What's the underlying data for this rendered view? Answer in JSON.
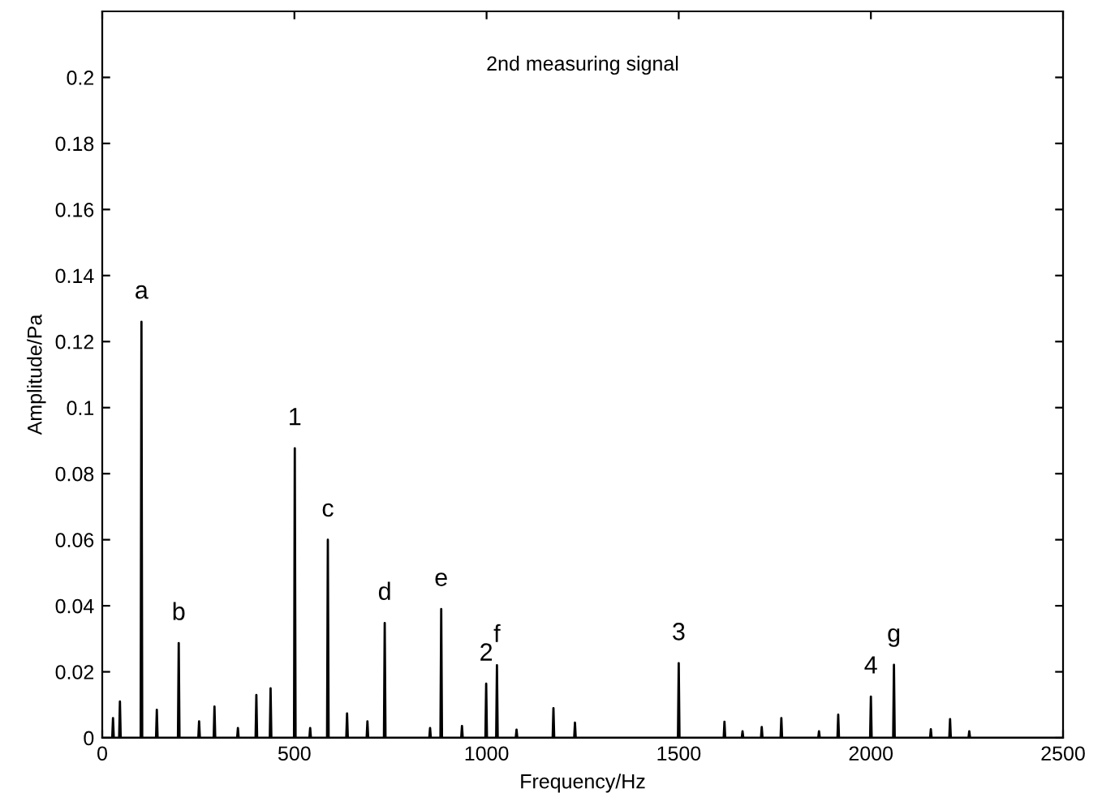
{
  "chart_data": {
    "type": "line",
    "title": "2nd measuring signal",
    "xlabel": "Frequency/Hz",
    "ylabel": "Amplitude/Pa",
    "x": [
      0,
      26,
      28,
      30,
      44,
      46,
      48,
      100,
      102,
      104,
      140,
      142,
      144,
      197,
      199,
      201,
      250,
      252,
      254,
      290,
      292,
      294,
      351,
      353,
      355,
      399,
      401,
      403,
      436,
      438,
      440,
      499,
      501,
      503,
      539,
      541,
      543,
      585,
      587,
      589,
      635,
      637,
      639,
      688,
      690,
      692,
      733,
      735,
      737,
      851,
      853,
      855,
      880,
      882,
      884,
      934,
      936,
      938,
      997,
      999,
      1001,
      1025,
      1027,
      1029,
      1076,
      1078,
      1080,
      1172,
      1174,
      1176,
      1228,
      1230,
      1232,
      1498,
      1500,
      1502,
      1617,
      1619,
      1621,
      1664,
      1666,
      1668,
      1714,
      1716,
      1718,
      1765,
      1767,
      1769,
      1863,
      1865,
      1867,
      1913,
      1915,
      1917,
      1998,
      2000,
      2002,
      2058,
      2060,
      2062,
      2154,
      2156,
      2158,
      2204,
      2206,
      2208,
      2254,
      2256,
      2258,
      2500
    ],
    "series": [
      {
        "color": "#000000",
        "values": [
          0,
          0,
          0.006,
          0,
          0,
          0.011,
          0,
          0,
          0.126,
          0,
          0,
          0.0085,
          0,
          0,
          0.0287,
          0,
          0,
          0.005,
          0,
          0,
          0.0095,
          0,
          0,
          0.003,
          0,
          0,
          0.013,
          0,
          0,
          0.015,
          0,
          0,
          0.0877,
          0,
          0,
          0.003,
          0,
          0,
          0.06,
          0,
          0,
          0.0074,
          0,
          0,
          0.005,
          0,
          0,
          0.0348,
          0,
          0,
          0.003,
          0,
          0,
          0.039,
          0,
          0,
          0.0036,
          0,
          0,
          0.0164,
          0,
          0,
          0.022,
          0,
          0,
          0.0025,
          0,
          0,
          0.009,
          0,
          0,
          0.0046,
          0,
          0,
          0.0226,
          0,
          0,
          0.0049,
          0,
          0,
          0.002,
          0,
          0,
          0.0033,
          0,
          0,
          0.006,
          0,
          0,
          0.002,
          0,
          0,
          0.007,
          0,
          0,
          0.0125,
          0,
          0,
          0.0221,
          0,
          0,
          0.0026,
          0,
          0,
          0.0057,
          0,
          0,
          0.002,
          0,
          0
        ]
      }
    ],
    "xlim": [
      0,
      2500
    ],
    "xticks": [
      0,
      500,
      1000,
      1500,
      2000,
      2500
    ],
    "ylim": [
      0,
      0.22
    ],
    "yticks": [
      0,
      0.02,
      0.04,
      0.06,
      0.08,
      0.1,
      0.12,
      0.14,
      0.16,
      0.18,
      0.2
    ],
    "grid": false,
    "legend": false,
    "marker": "none",
    "line_style": "solid",
    "annotations": [
      {
        "text": "a",
        "x": 102,
        "y": 0.126
      },
      {
        "text": "b",
        "x": 199,
        "y": 0.0287
      },
      {
        "text": "1",
        "x": 501,
        "y": 0.0877
      },
      {
        "text": "c",
        "x": 587,
        "y": 0.06
      },
      {
        "text": "d",
        "x": 735,
        "y": 0.0348
      },
      {
        "text": "e",
        "x": 882,
        "y": 0.039
      },
      {
        "text": "2",
        "x": 999,
        "y": 0.0164
      },
      {
        "text": "f",
        "x": 1027,
        "y": 0.022
      },
      {
        "text": "3",
        "x": 1500,
        "y": 0.0226
      },
      {
        "text": "4",
        "x": 2000,
        "y": 0.0125
      },
      {
        "text": "g",
        "x": 2060,
        "y": 0.0221
      }
    ]
  }
}
